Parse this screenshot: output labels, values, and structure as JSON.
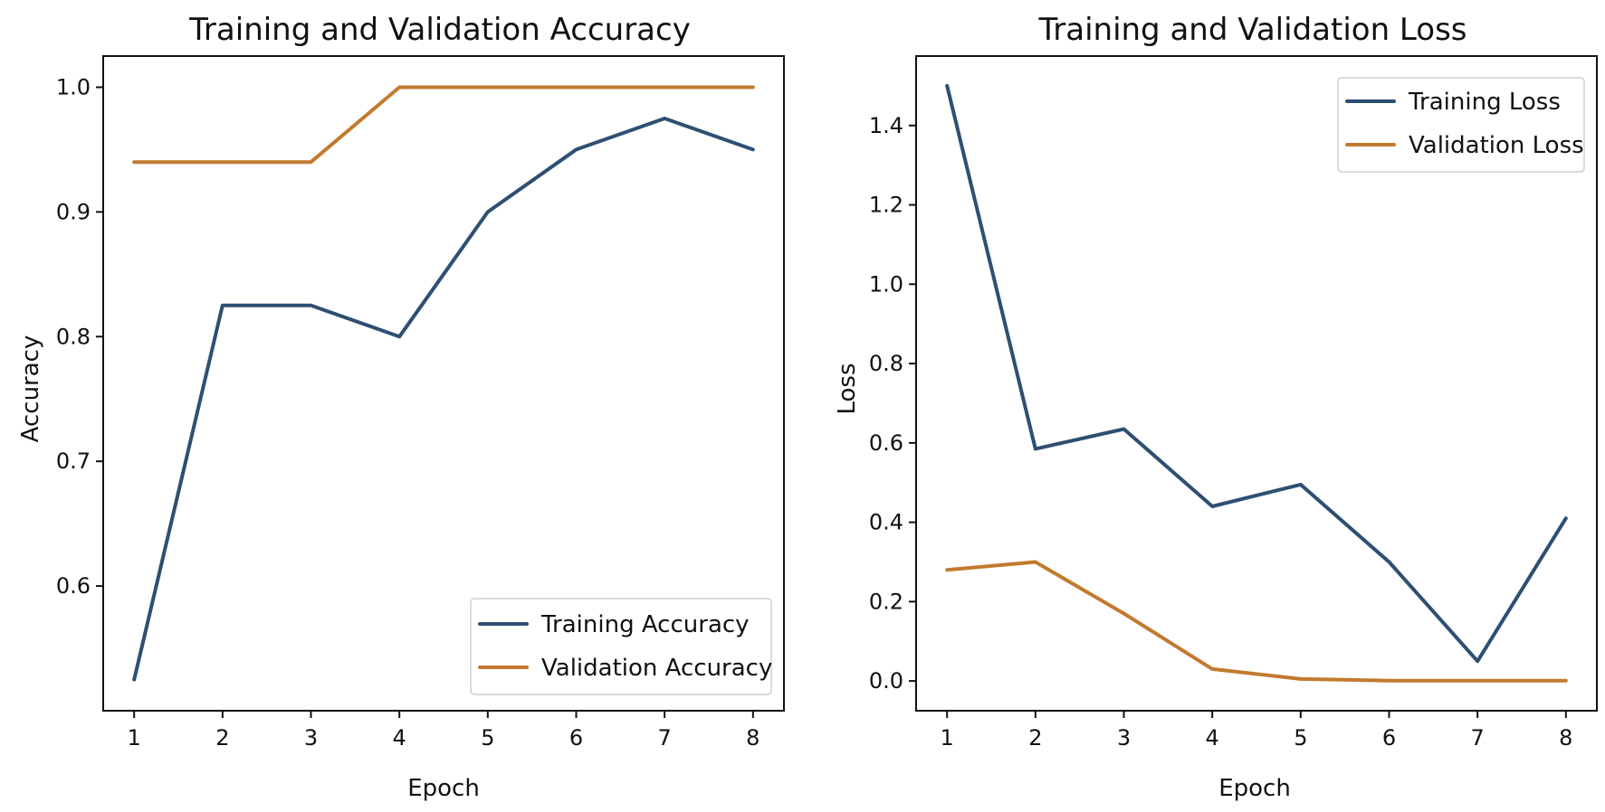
{
  "chart_data": [
    {
      "type": "line",
      "title": "Training and Validation Accuracy",
      "xlabel": "Epoch",
      "ylabel": "Accuracy",
      "x": [
        1,
        2,
        3,
        4,
        5,
        6,
        7,
        8
      ],
      "xticks": [
        "1",
        "2",
        "3",
        "4",
        "5",
        "6",
        "7",
        "8"
      ],
      "yticks": [
        "0.6",
        "0.7",
        "0.8",
        "0.9",
        "1.0"
      ],
      "ytick_values": [
        0.6,
        0.7,
        0.8,
        0.9,
        1.0
      ],
      "xlim": [
        0.65,
        8.35
      ],
      "ylim": [
        0.5,
        1.025
      ],
      "legend_position": "lower-right",
      "series": [
        {
          "name": "Training Accuracy",
          "color": "#2e4f73",
          "values": [
            0.525,
            0.825,
            0.825,
            0.8,
            0.9,
            0.95,
            0.975,
            0.95
          ]
        },
        {
          "name": "Validation Accuracy",
          "color": "#c27a2e",
          "values": [
            0.94,
            0.94,
            0.94,
            1.0,
            1.0,
            1.0,
            1.0,
            1.0
          ]
        }
      ]
    },
    {
      "type": "line",
      "title": "Training and Validation Loss",
      "xlabel": "Epoch",
      "ylabel": "Loss",
      "x": [
        1,
        2,
        3,
        4,
        5,
        6,
        7,
        8
      ],
      "xticks": [
        "1",
        "2",
        "3",
        "4",
        "5",
        "6",
        "7",
        "8"
      ],
      "yticks": [
        "0.0",
        "0.2",
        "0.4",
        "0.6",
        "0.8",
        "1.0",
        "1.2",
        "1.4"
      ],
      "ytick_values": [
        0.0,
        0.2,
        0.4,
        0.6,
        0.8,
        1.0,
        1.2,
        1.4
      ],
      "xlim": [
        0.65,
        8.35
      ],
      "ylim": [
        -0.075,
        1.575
      ],
      "legend_position": "upper-right",
      "series": [
        {
          "name": "Training Loss",
          "color": "#2e4f73",
          "values": [
            1.5,
            0.585,
            0.635,
            0.44,
            0.495,
            0.3,
            0.05,
            0.41
          ]
        },
        {
          "name": "Validation Loss",
          "color": "#c27a2e",
          "values": [
            0.28,
            0.3,
            0.17,
            0.03,
            0.005,
            0.001,
            0.001,
            0.001
          ]
        }
      ]
    }
  ]
}
